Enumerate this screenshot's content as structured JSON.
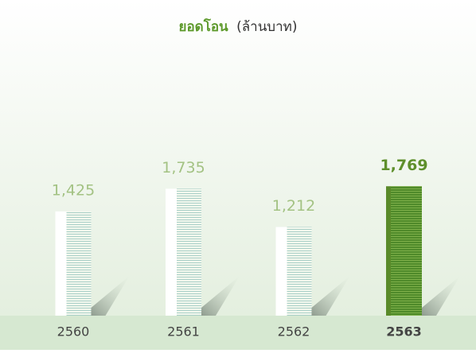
{
  "chart_data": {
    "type": "bar",
    "title": "ยอดโอน",
    "subtitle": "(ล้านบาท)",
    "categories": [
      "2560",
      "2561",
      "2562",
      "2563"
    ],
    "values": [
      1425,
      1735,
      1212,
      1769
    ],
    "value_labels": [
      "1,425",
      "1,735",
      "1,212",
      "1,769"
    ],
    "colors": [
      "#ffffff",
      "#ffffff",
      "#ffffff",
      "#5a8a2a"
    ]
  }
}
